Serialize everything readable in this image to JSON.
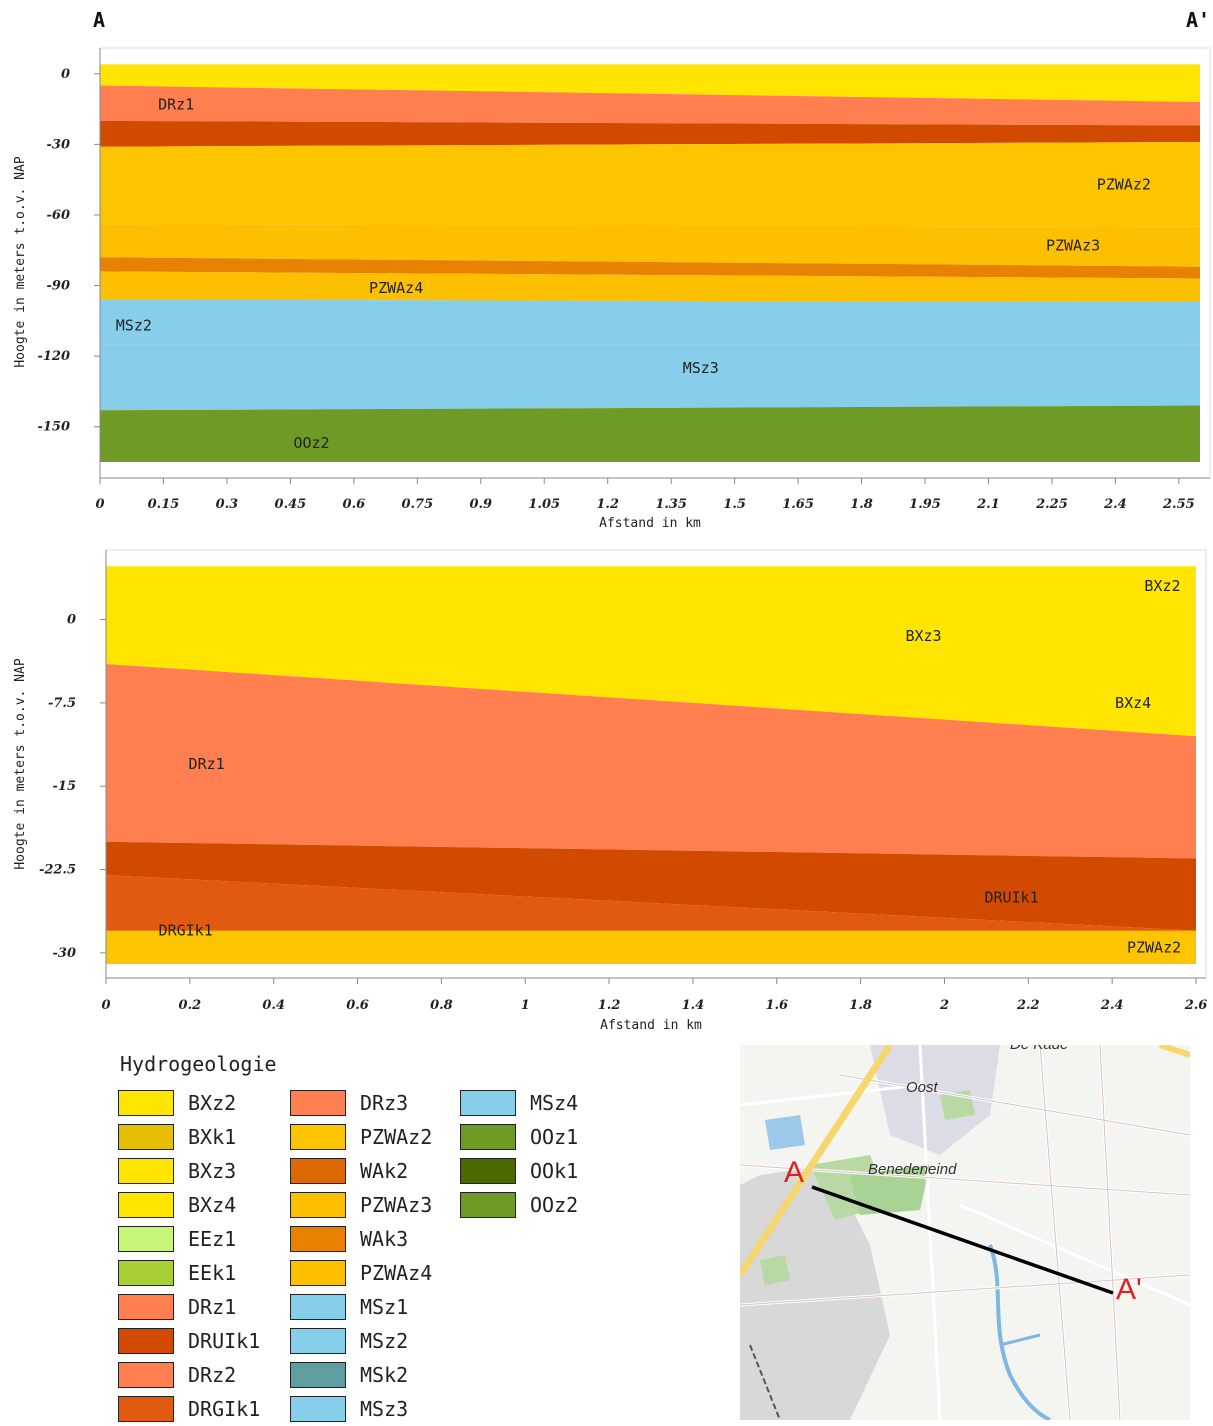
{
  "corner_labels": {
    "start": "A",
    "end": "A'"
  },
  "chart_data": [
    {
      "type": "area",
      "ylabel": "Hoogte in meters t.o.v. NAP",
      "xlabel": "Afstand in km",
      "xlim": [
        0,
        2.6
      ],
      "ylim": [
        -165,
        5
      ],
      "x_ticks": [
        "0",
        "0.15",
        "0.3",
        "0.45",
        "0.6",
        "0.75",
        "0.9",
        "1.05",
        "1.2",
        "1.35",
        "1.5",
        "1.65",
        "1.8",
        "1.95",
        "2.1",
        "2.25",
        "2.4",
        "2.55"
      ],
      "y_ticks": [
        "0",
        "-30",
        "-60",
        "-90",
        "-120",
        "-150"
      ],
      "series": [
        {
          "name": "BXz2",
          "color": "#FFE500",
          "top": [
            4,
            4
          ],
          "bottom": [
            -5,
            -12
          ]
        },
        {
          "name": "DRz1",
          "color": "#FF7F50",
          "top": [
            -5,
            -12
          ],
          "bottom": [
            -20,
            -22
          ]
        },
        {
          "name": "DRUIk1",
          "color": "#D24A00",
          "top": [
            -20,
            -22
          ],
          "bottom": [
            -31,
            -29
          ]
        },
        {
          "name": "PZWAz2",
          "color": "#FDC500",
          "top": [
            -31,
            -29
          ],
          "bottom": [
            -64,
            -65
          ]
        },
        {
          "name": "PZWAz3",
          "color": "#FDC000",
          "top": [
            -64,
            -65
          ],
          "bottom": [
            -78,
            -82
          ]
        },
        {
          "name": "WAk3",
          "color": "#E88000",
          "top": [
            -78,
            -82
          ],
          "bottom": [
            -84,
            -87
          ]
        },
        {
          "name": "PZWAz4",
          "color": "#FDC000",
          "top": [
            -84,
            -87
          ],
          "bottom": [
            -96,
            -97
          ]
        },
        {
          "name": "MSz2",
          "color": "#87CEEB",
          "top": [
            -96,
            -97
          ],
          "bottom": [
            -115,
            -115
          ]
        },
        {
          "name": "MSz3",
          "color": "#87CEEB",
          "top": [
            -115,
            -115
          ],
          "bottom": [
            -143,
            -141
          ]
        },
        {
          "name": "OOz2",
          "color": "#6E9A26",
          "top": [
            -143,
            -141
          ],
          "bottom": [
            -165,
            -165
          ]
        }
      ],
      "annotations": [
        {
          "text": "DRz1",
          "x": 0.18,
          "y": -13
        },
        {
          "text": "PZWAz2",
          "x": 2.42,
          "y": -47
        },
        {
          "text": "PZWAz3",
          "x": 2.3,
          "y": -73
        },
        {
          "text": "PZWAz4",
          "x": 0.7,
          "y": -91
        },
        {
          "text": "MSz2",
          "x": 0.08,
          "y": -107
        },
        {
          "text": "MSz3",
          "x": 1.42,
          "y": -125
        },
        {
          "text": "OOz2",
          "x": 0.5,
          "y": -157
        }
      ]
    },
    {
      "type": "area",
      "ylabel": "Hoogte in meters t.o.v. NAP",
      "xlabel": "Afstand in km",
      "xlim": [
        0,
        2.6
      ],
      "ylim": [
        -31,
        5
      ],
      "x_ticks": [
        "0",
        "0.2",
        "0.4",
        "0.6",
        "0.8",
        "1",
        "1.2",
        "1.4",
        "1.6",
        "1.8",
        "2",
        "2.2",
        "2.4",
        "2.6"
      ],
      "y_ticks": [
        "0",
        "-7.5",
        "-15",
        "-22.5",
        "-30"
      ],
      "series": [
        {
          "name": "BXz2",
          "color": "#FFE500",
          "top": [
            4.8,
            4.8
          ],
          "bottom": [
            4,
            4
          ]
        },
        {
          "name": "BXz3",
          "color": "#FFE500",
          "top": [
            4,
            4
          ],
          "bottom": [
            -4,
            -10.5
          ]
        },
        {
          "name": "DRz1",
          "color": "#FF7F50",
          "top": [
            -4,
            -10.5
          ],
          "bottom": [
            -20,
            -21.5
          ]
        },
        {
          "name": "DRUIk1",
          "color": "#D24A00",
          "top": [
            -20,
            -21.5
          ],
          "bottom": [
            -23,
            -28
          ]
        },
        {
          "name": "DRGIk1",
          "color": "#E05A10",
          "top": [
            -23,
            -28
          ],
          "bottom": [
            -31,
            -30.5
          ]
        },
        {
          "name": "PZWAz2",
          "color": "#FDC500",
          "top": [
            -28,
            -28
          ],
          "bottom": [
            -31,
            -31
          ]
        }
      ],
      "annotations": [
        {
          "text": "BXz2",
          "x": 2.52,
          "y": 3
        },
        {
          "text": "BXz3",
          "x": 1.95,
          "y": -1.5
        },
        {
          "text": "BXz4",
          "x": 2.45,
          "y": -7.5
        },
        {
          "text": "DRz1",
          "x": 0.24,
          "y": -13
        },
        {
          "text": "DRUIk1",
          "x": 2.16,
          "y": -25
        },
        {
          "text": "DRGIk1",
          "x": 0.19,
          "y": -28
        },
        {
          "text": "PZWAz2",
          "x": 2.5,
          "y": -29.5
        }
      ]
    }
  ],
  "legend": {
    "title": "Hydrogeologie",
    "columns": [
      [
        {
          "label": "BXz2",
          "color": "#FFE500"
        },
        {
          "label": "BXk1",
          "color": "#E6BE00"
        },
        {
          "label": "BXz3",
          "color": "#FFE500"
        },
        {
          "label": "BXz4",
          "color": "#FFE500"
        },
        {
          "label": "EEz1",
          "color": "#C6F57A"
        },
        {
          "label": "EEk1",
          "color": "#A8D035"
        },
        {
          "label": "DRz1",
          "color": "#FF7F50"
        },
        {
          "label": "DRUIk1",
          "color": "#D24A00"
        },
        {
          "label": "DRz2",
          "color": "#FF7F50"
        },
        {
          "label": "DRGIk1",
          "color": "#E05A10"
        }
      ],
      [
        {
          "label": "DRz3",
          "color": "#FF7F50"
        },
        {
          "label": "PZWAz2",
          "color": "#FDC500"
        },
        {
          "label": "WAk2",
          "color": "#DC6A00"
        },
        {
          "label": "PZWAz3",
          "color": "#FDC000"
        },
        {
          "label": "WAk3",
          "color": "#E88000"
        },
        {
          "label": "PZWAz4",
          "color": "#FDC000"
        },
        {
          "label": "MSz1",
          "color": "#87CEEB"
        },
        {
          "label": "MSz2",
          "color": "#87CEEB"
        },
        {
          "label": "MSk2",
          "color": "#5F9EA0"
        },
        {
          "label": "MSz3",
          "color": "#87CEEB"
        }
      ],
      [
        {
          "label": "MSz4",
          "color": "#87CEEB"
        },
        {
          "label": "OOz1",
          "color": "#6E9A26"
        },
        {
          "label": "OOk1",
          "color": "#4A6A00"
        },
        {
          "label": "OOz2",
          "color": "#6E9A26"
        }
      ]
    ]
  },
  "map": {
    "labels": [
      "De Kade",
      "Oost",
      "Benedeneind"
    ],
    "point_a": "A",
    "point_b": "A'"
  }
}
